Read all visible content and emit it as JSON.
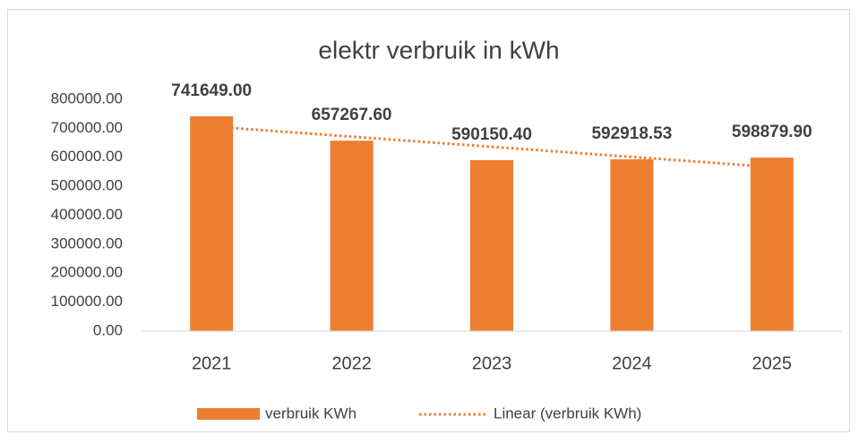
{
  "chart_data": {
    "type": "bar",
    "title": "elektr verbruik in kWh",
    "categories": [
      "2021",
      "2022",
      "2023",
      "2024",
      "2025"
    ],
    "series": [
      {
        "name": "verbruik KWh",
        "color": "#ed7d31",
        "values": [
          741649,
          657267.6,
          590150.4,
          592918.53,
          598879.9
        ],
        "value_labels": [
          "741649.00",
          "657267.60",
          "590150.40",
          "592918.53",
          "598879.90"
        ]
      }
    ],
    "trendline": {
      "name": "Linear (verbruik KWh)",
      "kind": "linear",
      "color": "#ed7d31"
    },
    "ylim": [
      0,
      800000
    ],
    "yticks": [
      {
        "value": 0,
        "label": "0.00"
      },
      {
        "value": 100000,
        "label": "100000.00"
      },
      {
        "value": 200000,
        "label": "200000.00"
      },
      {
        "value": 300000,
        "label": "300000.00"
      },
      {
        "value": 400000,
        "label": "400000.00"
      },
      {
        "value": 500000,
        "label": "500000.00"
      },
      {
        "value": 600000,
        "label": "600000.00"
      },
      {
        "value": 700000,
        "label": "700000.00"
      },
      {
        "value": 800000,
        "label": "800000.00"
      }
    ],
    "grid": false,
    "legend": "bottom"
  }
}
